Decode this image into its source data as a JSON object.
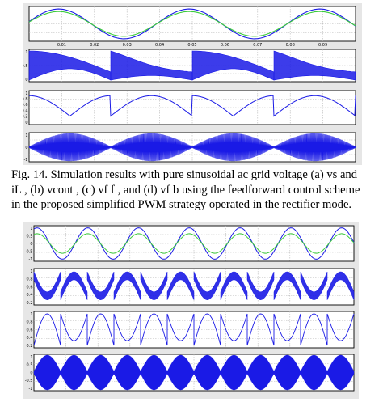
{
  "caption": {
    "line1": "Fig. 14. Simulation results with pure sinusoidal ac grid voltage (a) vs and",
    "line2": "iL , (b) vcont , (c) vf f , and (d) vf b using the feedforward control scheme",
    "line3": "in the proposed simplified PWM strategy operated in the rectifier mode."
  },
  "colors": {
    "trace_blue": "#1a1ae6",
    "trace_green": "#3ccc3c",
    "axes_bg": "#ffffff",
    "figure_bg": "#e6e6e6"
  },
  "chart_data": [
    {
      "type": "line",
      "panel": "top-a",
      "x": [
        0,
        0.02,
        0.04,
        0.06,
        0.08,
        0.1
      ],
      "xlim": [
        0,
        0.1
      ],
      "x_tick_labels": [
        "0.01",
        "0.02",
        "0.03",
        "0.04",
        "0.05",
        "0.06",
        "0.07",
        "0.08",
        "0.09"
      ],
      "ylim": [
        -1,
        1
      ],
      "series": [
        {
          "color": "#1a1ae6",
          "amplitude": 0.9,
          "frequency_hz": 25
        },
        {
          "color": "#3ccc3c",
          "amplitude": 0.75,
          "frequency_hz": 25
        }
      ],
      "grid": true
    },
    {
      "type": "area",
      "panel": "top-b",
      "xlim": [
        0,
        0.1
      ],
      "ylim": [
        0,
        1
      ],
      "y_tick_labels": [
        "1",
        "0.5",
        "0"
      ],
      "segments_count": 4,
      "color": "#1a1ae6",
      "grid": true
    },
    {
      "type": "line",
      "panel": "top-c",
      "xlim": [
        0,
        0.1
      ],
      "ylim": [
        0,
        1
      ],
      "y_tick_labels": [
        "1",
        "0.8",
        "0.6",
        "0.4",
        "0.2",
        "0"
      ],
      "color": "#1a1ae6",
      "grid": true
    },
    {
      "type": "area",
      "panel": "top-d",
      "xlim": [
        0,
        0.1
      ],
      "ylim": [
        -1,
        1
      ],
      "y_tick_labels": [
        "1",
        "0",
        "-1"
      ],
      "envelope_lobes": 4,
      "color": "#1a1ae6",
      "grid": true
    },
    {
      "type": "line",
      "panel": "bottom-a",
      "xlim": [
        0,
        0.1
      ],
      "ylim": [
        -1,
        1
      ],
      "y_tick_labels": [
        "1",
        "0.5",
        "0",
        "-0.5",
        "-1"
      ],
      "cycles": 6.3,
      "series": [
        {
          "color": "#1a1ae6",
          "amplitude": 0.88
        },
        {
          "color": "#3ccc3c",
          "amplitude": 0.55
        }
      ],
      "grid": true
    },
    {
      "type": "area",
      "panel": "bottom-b",
      "xlim": [
        0,
        0.1
      ],
      "ylim": [
        0,
        1
      ],
      "y_tick_labels": [
        "1",
        "0.8",
        "0.6",
        "0.4",
        "0.2"
      ],
      "arch_segments": 12,
      "color": "#1a1ae6",
      "grid": true
    },
    {
      "type": "line",
      "panel": "bottom-c",
      "xlim": [
        0,
        0.1
      ],
      "ylim": [
        0,
        1
      ],
      "y_tick_labels": [
        "1",
        "0.8",
        "0.6",
        "0.4",
        "0.2"
      ],
      "arch_segments": 12,
      "color": "#1a1ae6",
      "grid": true
    },
    {
      "type": "area",
      "panel": "bottom-d",
      "xlim": [
        0,
        0.1
      ],
      "ylim": [
        -1,
        1
      ],
      "y_tick_labels": [
        "1",
        "0.5",
        "0",
        "-0.5",
        "-1"
      ],
      "envelope_lobes": 12,
      "color": "#1a1ae6",
      "grid": true
    }
  ]
}
